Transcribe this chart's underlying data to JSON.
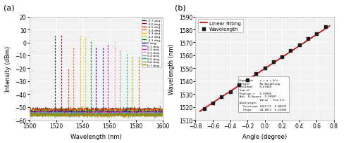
{
  "panel_a": {
    "xlabel": "Wavelength (nm)",
    "ylabel": "Intensity (dBm)",
    "xlim": [
      1500,
      1600
    ],
    "ylim": [
      -60,
      20
    ],
    "xticks": [
      1500,
      1520,
      1540,
      1560,
      1580,
      1600
    ],
    "yticks": [
      -60,
      -50,
      -40,
      -30,
      -20,
      -10,
      0,
      10,
      20
    ],
    "peaks": [
      1519,
      1524,
      1529,
      1533,
      1538,
      1542,
      1546,
      1550,
      1555,
      1559,
      1564,
      1568,
      1573,
      1577,
      1582
    ],
    "peak_heights": [
      5,
      6,
      -20,
      -4,
      5,
      4,
      1,
      -3,
      -4,
      0,
      1,
      -5,
      -9,
      -11,
      -11
    ],
    "noise_level": -52,
    "angles": [
      "-0.7 deg",
      "-0.6 deg",
      "-0.5 deg",
      "-0.4 deg",
      "-0.3 deg",
      "-0.2 deg",
      "-0.1 deg",
      "0 deg",
      "0.1 deg",
      "0.2 deg",
      "0.3 deg",
      "0.4 deg",
      "0.5 deg",
      "0.6 deg",
      "0.7 deg"
    ],
    "colors": [
      "#222222",
      "#880000",
      "#cc2200",
      "#ff6600",
      "#ffaa00",
      "#cccc00",
      "#008800",
      "#0000bb",
      "#6600aa",
      "#cc00bb",
      "#ff88cc",
      "#999999",
      "#00aaaa",
      "#88bb00",
      "#aa7700"
    ],
    "bg_color": "#f2f2f2",
    "grid_color": "#ffffff"
  },
  "panel_b": {
    "xlabel": "Angle (degree)",
    "ylabel": "Wavelength (nm)",
    "xlim": [
      -0.8,
      0.8
    ],
    "ylim": [
      1510,
      1590
    ],
    "xticks": [
      -0.8,
      -0.6,
      -0.4,
      -0.2,
      0.0,
      0.2,
      0.4,
      0.6,
      0.8
    ],
    "yticks": [
      1510,
      1520,
      1530,
      1540,
      1550,
      1560,
      1570,
      1580,
      1590
    ],
    "scatter_x": [
      -0.7,
      -0.6,
      -0.5,
      -0.4,
      -0.3,
      -0.2,
      -0.1,
      0.0,
      0.1,
      0.2,
      0.3,
      0.4,
      0.5,
      0.6,
      0.7
    ],
    "scatter_y": [
      1519,
      1523,
      1528,
      1532,
      1537,
      1541,
      1546,
      1550,
      1555,
      1559,
      1564,
      1568,
      1573,
      1577,
      1582
    ],
    "scatter_color": "#1a1a1a",
    "fit_color": "#cc0000",
    "legend_labels": [
      "Wavelength",
      "Linear fitting"
    ],
    "intercept": 1549.73,
    "slope": 44.0071,
    "bg_color": "#f2f2f2",
    "grid_color": "#ffffff"
  },
  "background_color": "#ffffff"
}
